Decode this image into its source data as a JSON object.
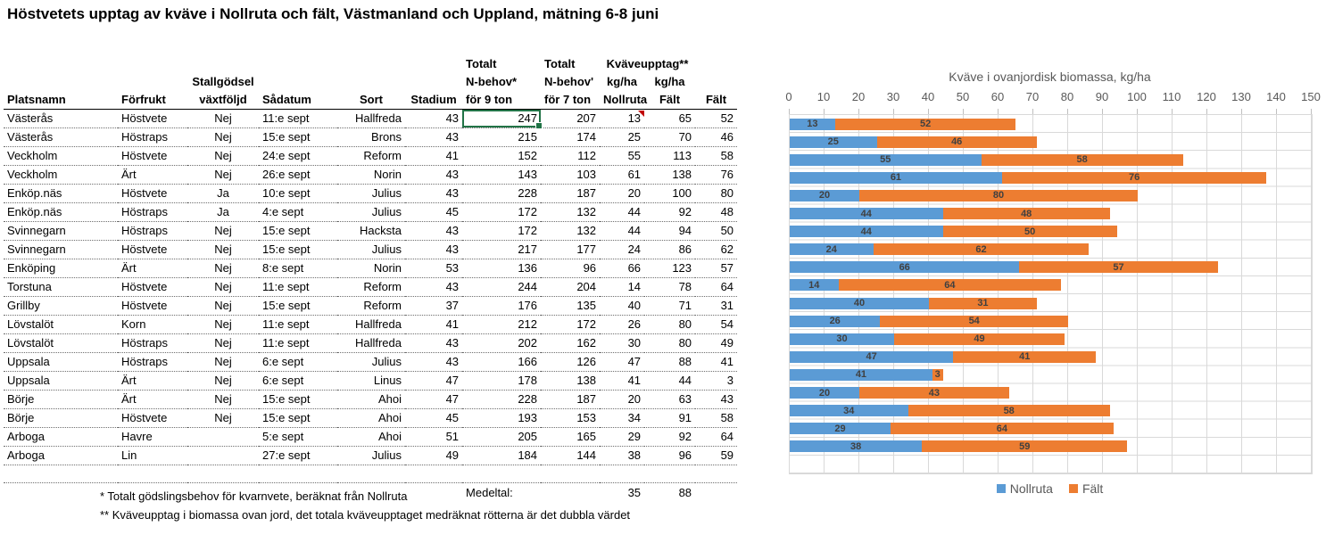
{
  "title": "Höstvetets upptag av kväve i Nollruta och fält, Västmanland och Uppland, mätning 6-8 juni",
  "table": {
    "header": {
      "totalt_9": "Totalt",
      "totalt_7": "Totalt",
      "kvaveupptag": "Kväveupptag**",
      "stallgodsel": "Stallgödsel",
      "nbehov_9": "N-behov*",
      "nbehov_7": "N-behov'",
      "kgha_nollruta": "kg/ha",
      "kgha_falt": "kg/ha",
      "platsnamn": "Platsnamn",
      "forfrukt": "Förfrukt",
      "vaxtfoljd": "växtföljd",
      "sadatum": "Sådatum",
      "sort": "Sort",
      "stadium": "Stadium",
      "for_9_ton": "för 9 ton",
      "for_7_ton": "för 7 ton",
      "nollruta": "Nollruta",
      "falt": "Fält",
      "falt_2": "Fält"
    },
    "rows": [
      [
        "Västerås",
        "Höstvete",
        "Nej",
        "11:e sept",
        "Hallfreda",
        "43",
        "247",
        "207",
        "13",
        "65",
        "52"
      ],
      [
        "Västerås",
        "Höstraps",
        "Nej",
        "15:e sept",
        "Brons",
        "43",
        "215",
        "174",
        "25",
        "70",
        "46"
      ],
      [
        "Veckholm",
        "Höstvete",
        "Nej",
        "24:e sept",
        "Reform",
        "41",
        "152",
        "112",
        "55",
        "113",
        "58"
      ],
      [
        "Veckholm",
        "Ärt",
        "Nej",
        "26:e sept",
        "Norin",
        "43",
        "143",
        "103",
        "61",
        "138",
        "76"
      ],
      [
        "Enköp.näs",
        "Höstvete",
        "Ja",
        "10:e sept",
        "Julius",
        "43",
        "228",
        "187",
        "20",
        "100",
        "80"
      ],
      [
        "Enköp.näs",
        "Höstraps",
        "Ja",
        "4:e sept",
        "Julius",
        "45",
        "172",
        "132",
        "44",
        "92",
        "48"
      ],
      [
        "Svinnegarn",
        "Höstraps",
        "Nej",
        "15:e sept",
        "Hacksta",
        "43",
        "172",
        "132",
        "44",
        "94",
        "50"
      ],
      [
        "Svinnegarn",
        "Höstvete",
        "Nej",
        "15:e sept",
        "Julius",
        "43",
        "217",
        "177",
        "24",
        "86",
        "62"
      ],
      [
        "Enköping",
        "Ärt",
        "Nej",
        "8:e sept",
        "Norin",
        "53",
        "136",
        "96",
        "66",
        "123",
        "57"
      ],
      [
        "Torstuna",
        "Höstvete",
        "Nej",
        "11:e sept",
        "Reform",
        "43",
        "244",
        "204",
        "14",
        "78",
        "64"
      ],
      [
        "Grillby",
        "Höstvete",
        "Nej",
        "15:e sept",
        "Reform",
        "37",
        "176",
        "135",
        "40",
        "71",
        "31"
      ],
      [
        "Lövstalöt",
        "Korn",
        "Nej",
        "11:e sept",
        "Hallfreda",
        "41",
        "212",
        "172",
        "26",
        "80",
        "54"
      ],
      [
        "Lövstalöt",
        "Höstraps",
        "Nej",
        "11:e sept",
        "Hallfreda",
        "43",
        "202",
        "162",
        "30",
        "80",
        "49"
      ],
      [
        "Uppsala",
        "Höstraps",
        "Nej",
        "6:e sept",
        "Julius",
        "43",
        "166",
        "126",
        "47",
        "88",
        "41"
      ],
      [
        "Uppsala",
        "Ärt",
        "Nej",
        "6:e sept",
        "Linus",
        "47",
        "178",
        "138",
        "41",
        "44",
        "3"
      ],
      [
        "Börje",
        "Ärt",
        "Nej",
        "15:e sept",
        "Ahoi",
        "47",
        "228",
        "187",
        "20",
        "63",
        "43"
      ],
      [
        "Börje",
        "Höstvete",
        "Nej",
        "15:e sept",
        "Ahoi",
        "45",
        "193",
        "153",
        "34",
        "91",
        "58"
      ],
      [
        "Arboga",
        "Havre",
        "",
        "5:e sept",
        "Ahoi",
        "51",
        "205",
        "165",
        "29",
        "92",
        "64"
      ],
      [
        "Arboga",
        "Lin",
        "",
        "27:e sept",
        "Julius",
        "49",
        "184",
        "144",
        "38",
        "96",
        "59"
      ]
    ],
    "medeltal": {
      "label": "Medeltal:",
      "nollruta": "35",
      "falt": "88"
    }
  },
  "footnotes": {
    "fn1": "* Totalt gödslingsbehov för kvarnvete, beräknat från Nollruta",
    "fn2": "** Kväveupptag i biomassa ovan jord, det totala kväveupptaget medräknat rötterna är det dubbla värdet"
  },
  "chart_data": {
    "type": "bar",
    "stacked": true,
    "orientation": "horizontal",
    "title": "Kväve i ovanjordisk biomassa, kg/ha",
    "x_axis": {
      "min": 0,
      "max": 150,
      "step": 10,
      "position": "top"
    },
    "series": [
      {
        "name": "Nollruta",
        "color": "#5B9BD5",
        "values": [
          13,
          25,
          55,
          61,
          20,
          44,
          44,
          24,
          66,
          14,
          40,
          26,
          30,
          47,
          41,
          20,
          34,
          29,
          38
        ]
      },
      {
        "name": "Fält",
        "color": "#ED7D31",
        "values": [
          52,
          46,
          58,
          76,
          80,
          48,
          50,
          62,
          57,
          64,
          31,
          54,
          49,
          41,
          3,
          43,
          58,
          64,
          59
        ]
      }
    ],
    "data_labels": true,
    "legend_position": "bottom",
    "grid": true
  },
  "colors": {
    "selection_green": "#217346",
    "comment_red": "#C00000",
    "gridline": "#D9D9D9",
    "axis_text": "#595959"
  }
}
